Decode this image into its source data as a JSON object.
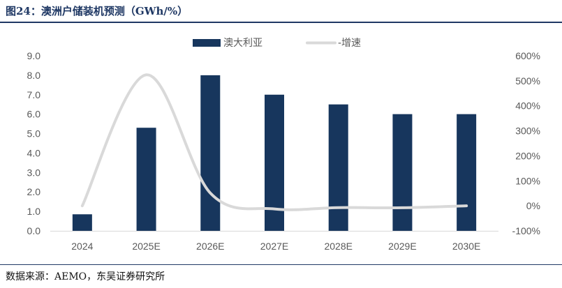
{
  "figure": {
    "title": "图24：澳洲户储装机预测（GWh/%）",
    "source": "数据来源：AEMO，东吴证券研究所"
  },
  "chart_data": {
    "type": "bar",
    "categories": [
      "2024",
      "2025E",
      "2026E",
      "2027E",
      "2028E",
      "2029E",
      "2030E"
    ],
    "series": [
      {
        "name": "澳大利亚",
        "type": "bar",
        "axis": "left",
        "color": "#17365d",
        "values": [
          0.85,
          5.3,
          8.0,
          7.0,
          6.5,
          6.0,
          6.0
        ]
      },
      {
        "name": "-增速",
        "type": "line",
        "axis": "right",
        "color": "#d9d9d9",
        "values": [
          0.0,
          5.24,
          0.51,
          -0.125,
          -0.071,
          -0.077,
          0.0
        ]
      }
    ],
    "y_left": {
      "min": 0,
      "max": 9,
      "step": 1,
      "tick_labels": [
        "0.0",
        "1.0",
        "2.0",
        "3.0",
        "4.0",
        "5.0",
        "6.0",
        "7.0",
        "8.0",
        "9.0"
      ]
    },
    "y_right": {
      "min": -1,
      "max": 6,
      "step": 1,
      "tick_labels": [
        "-100%",
        "0%",
        "100%",
        "200%",
        "300%",
        "400%",
        "500%",
        "600%"
      ]
    },
    "grid": false,
    "legend_position": "top"
  }
}
